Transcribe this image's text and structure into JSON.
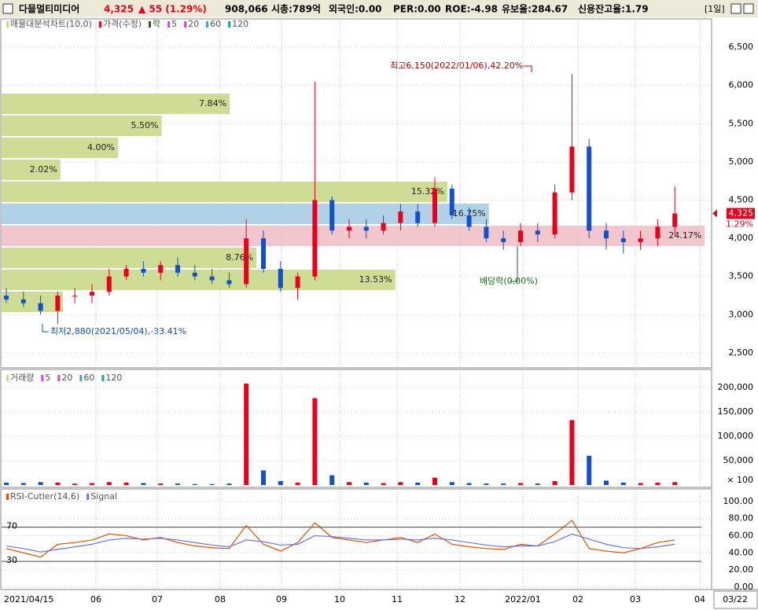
{
  "header": {
    "name": "다믈멀티미디어",
    "price": "4,325",
    "change": "▲ 55 (1.29%)",
    "volume": "908,066",
    "stats": [
      "시총:789억",
      "외국인:0.00",
      "PER:0.00",
      "ROE:-4.98",
      "유보율:284.67",
      "신용잔고율:1.79"
    ],
    "period": "[1일]"
  },
  "x_axis": {
    "labels": [
      "2021/04/15",
      "06",
      "07",
      "08",
      "09",
      "10",
      "11",
      "12",
      "2022/01",
      "02",
      "03",
      "04"
    ],
    "current": "03/22"
  },
  "chart_data": [
    {
      "type": "candlestick",
      "legend": [
        "매물대분석차트(10,0)",
        "가격(수정)",
        "락",
        "5",
        "20",
        "60",
        "120"
      ],
      "up_color": "#e8001c",
      "down_color": "#1450c8",
      "open": [
        3250,
        3200,
        3150,
        3050,
        3250,
        3250,
        3300,
        3500,
        3600,
        3550,
        3650,
        3550,
        3500,
        3450,
        3400,
        4000,
        3600,
        3350,
        3500,
        4500,
        4100,
        4150,
        4100,
        4200,
        4350,
        4200,
        4650,
        4300,
        4150,
        4000,
        3950,
        4100,
        4050,
        4600,
        5200,
        4100,
        4000,
        3950,
        4000,
        4150
      ],
      "high": [
        3350,
        3300,
        3250,
        3300,
        3350,
        3400,
        3600,
        3650,
        3700,
        3700,
        3750,
        3650,
        3600,
        3550,
        4250,
        4100,
        3700,
        3550,
        6050,
        4550,
        4250,
        4250,
        4300,
        4450,
        4450,
        4800,
        4700,
        4400,
        4250,
        4100,
        4200,
        4200,
        4700,
        6150,
        5300,
        4200,
        4100,
        4100,
        4250,
        4680
      ],
      "low": [
        3150,
        3100,
        3000,
        2880,
        3150,
        3150,
        3250,
        3450,
        3500,
        3450,
        3500,
        3450,
        3400,
        3350,
        3350,
        3550,
        3300,
        3200,
        3450,
        4050,
        4000,
        4000,
        4050,
        4100,
        4150,
        4150,
        4250,
        4100,
        3950,
        3850,
        3900,
        3950,
        4000,
        4500,
        4000,
        3850,
        3800,
        3850,
        3900,
        4050
      ],
      "close": [
        3200,
        3150,
        3050,
        3250,
        3250,
        3300,
        3500,
        3600,
        3550,
        3650,
        3550,
        3500,
        3450,
        3400,
        4000,
        3600,
        3350,
        3500,
        4500,
        4100,
        4150,
        4100,
        4200,
        4350,
        4200,
        4650,
        4300,
        4150,
        4000,
        3950,
        4100,
        4050,
        4600,
        5200,
        4100,
        4000,
        3950,
        4000,
        4150,
        4325
      ],
      "ylim": [
        2335,
        6830
      ],
      "yticks": [
        {
          "value": 2500,
          "label": "2,500"
        },
        {
          "value": 3000,
          "label": "3,000"
        },
        {
          "value": 3500,
          "label": "3,500"
        },
        {
          "value": 4000,
          "label": "4,000"
        },
        {
          "value": 4500,
          "label": "4,500"
        },
        {
          "value": 5000,
          "label": "5,000"
        },
        {
          "value": 5500,
          "label": "5,500"
        },
        {
          "value": 6000,
          "label": "6,000"
        },
        {
          "value": 6500,
          "label": "6,500"
        }
      ],
      "profile": {
        "bins": [
          3024,
          3312,
          3600,
          3888,
          4176,
          4464,
          4752,
          5040,
          5328,
          5616,
          5904
        ],
        "values": [
          2.11,
          13.53,
          8.76,
          24.17,
          16.75,
          15.32,
          2.02,
          4.0,
          5.5,
          7.84
        ],
        "value_labels": [
          null,
          "13.53%",
          "8.76%",
          "24.17%",
          "16.75%",
          "15.32%",
          "2.02%",
          "4.00%",
          "5.50%",
          "7.84%"
        ],
        "colors": [
          "#c8d98a",
          "#c8d98a",
          "#c8d98a",
          "#f0c0c8",
          "#a8cce4",
          "#c8d98a",
          "#c8d98a",
          "#c8d98a",
          "#c8d98a",
          "#c8d98a"
        ]
      },
      "annotations": {
        "high": "최고6,150(2022/01/06),42.20%",
        "low": "최저2,880(2021/05/04),-33.41%",
        "dividend": "배당락(0.00%)"
      },
      "last_price_label": "4,325",
      "last_change_label": "1.29%"
    },
    {
      "type": "bar",
      "legend": [
        "거래량",
        "5",
        "20",
        "60",
        "120"
      ],
      "values": [
        5000,
        4000,
        6000,
        5000,
        3000,
        4000,
        6000,
        5000,
        4000,
        3000,
        3000,
        2000,
        2000,
        3000,
        208000,
        30000,
        8000,
        5000,
        178000,
        20000,
        6000,
        5000,
        4000,
        6000,
        5000,
        15000,
        6000,
        4000,
        3000,
        3000,
        4000,
        3000,
        8000,
        133000,
        60000,
        9000,
        5000,
        4000,
        5000,
        6000
      ],
      "ylim": [
        0,
        232000
      ],
      "yticks": [
        {
          "value": 50000,
          "label": "50,000"
        },
        {
          "value": 100000,
          "label": "100,000"
        },
        {
          "value": 150000,
          "label": "150,000"
        },
        {
          "value": 200000,
          "label": "200,000"
        }
      ],
      "unit_label": "× 100"
    },
    {
      "type": "line",
      "series": [
        {
          "name": "RSI-Cutler(14,6)",
          "color": "#e05000",
          "values": [
            45,
            40,
            35,
            50,
            52,
            55,
            62,
            60,
            55,
            58,
            52,
            48,
            46,
            45,
            72,
            50,
            42,
            52,
            75,
            58,
            55,
            52,
            55,
            58,
            52,
            62,
            50,
            47,
            45,
            44,
            50,
            48,
            62,
            78,
            45,
            42,
            40,
            45,
            52,
            55
          ]
        },
        {
          "name": "Signal",
          "color": "#7070e0",
          "values": [
            48,
            45,
            41,
            44,
            47,
            50,
            55,
            57,
            56,
            57,
            55,
            52,
            49,
            47,
            55,
            53,
            49,
            50,
            60,
            59,
            57,
            55,
            55,
            56,
            55,
            57,
            55,
            52,
            49,
            47,
            48,
            48,
            53,
            62,
            56,
            50,
            46,
            45,
            47,
            50
          ]
        }
      ],
      "levels": [
        30,
        70
      ],
      "ylim": [
        -2,
        110
      ],
      "yticks": [
        {
          "value": 0,
          "label": "0.00"
        },
        {
          "value": 20,
          "label": "20.00"
        },
        {
          "value": 40,
          "label": "40.00"
        },
        {
          "value": 60,
          "label": "60.00"
        },
        {
          "value": 80,
          "label": "80.00"
        },
        {
          "value": 100,
          "label": "100.00"
        }
      ]
    }
  ]
}
